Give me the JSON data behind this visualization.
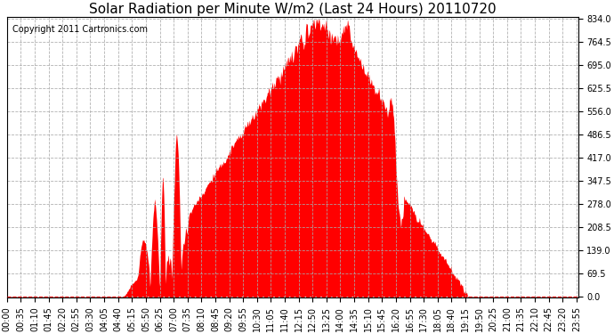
{
  "title": "Solar Radiation per Minute W/m2 (Last 24 Hours) 20110720",
  "copyright_text": "Copyright 2011 Cartronics.com",
  "yticks": [
    0.0,
    69.5,
    139.0,
    208.5,
    278.0,
    347.5,
    417.0,
    486.5,
    556.0,
    625.5,
    695.0,
    764.5,
    834.0
  ],
  "ymax": 834.0,
  "ymin": 0.0,
  "fill_color": "#FF0000",
  "dashed_line_color": "#FF0000",
  "grid_color": "#AAAAAA",
  "background_color": "#FFFFFF",
  "title_fontsize": 11,
  "copyright_fontsize": 7,
  "tick_label_fontsize": 7,
  "xtick_labels": [
    "00:00",
    "00:35",
    "01:10",
    "01:45",
    "02:20",
    "02:55",
    "03:30",
    "04:05",
    "04:40",
    "05:15",
    "05:50",
    "06:25",
    "07:00",
    "07:35",
    "08:10",
    "08:45",
    "09:20",
    "09:55",
    "10:30",
    "11:05",
    "11:40",
    "12:15",
    "12:50",
    "13:25",
    "14:00",
    "14:35",
    "15:10",
    "15:45",
    "16:20",
    "16:55",
    "17:30",
    "18:05",
    "18:40",
    "19:15",
    "19:50",
    "20:25",
    "21:00",
    "21:35",
    "22:10",
    "22:45",
    "23:20",
    "23:55"
  ]
}
